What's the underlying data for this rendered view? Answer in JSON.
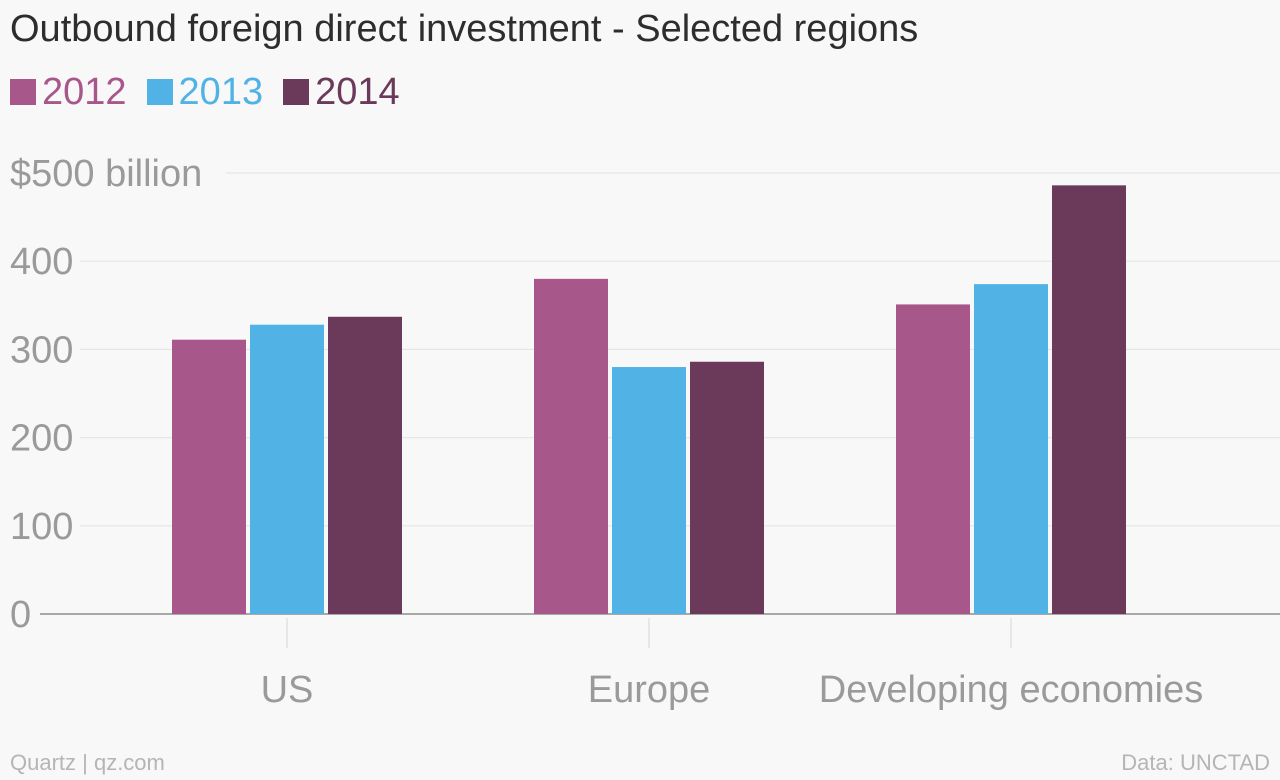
{
  "title": "Outbound foreign direct investment - Selected regions",
  "colors": {
    "2012": "#a8578a",
    "2013": "#51b2e5",
    "2014": "#6b3a5a"
  },
  "chart_data": {
    "type": "bar",
    "title": "Outbound foreign direct investment - Selected regions",
    "categories": [
      "US",
      "Europe",
      "Developing economies"
    ],
    "series": [
      {
        "name": "2012",
        "color": "#a8578a",
        "values": [
          311,
          380,
          351
        ]
      },
      {
        "name": "2013",
        "color": "#51b2e5",
        "values": [
          328,
          280,
          374
        ]
      },
      {
        "name": "2014",
        "color": "#6b3a5a",
        "values": [
          337,
          286,
          486
        ]
      }
    ],
    "yticks": [
      "0",
      "100",
      "200",
      "300",
      "400",
      "$500 billion"
    ],
    "ytick_values": [
      0,
      100,
      200,
      300,
      400,
      500
    ],
    "ylim": [
      0,
      500
    ],
    "xlabel": "",
    "ylabel": "",
    "grid": true,
    "legend_position": "top-left"
  },
  "footer": {
    "source_left": "Quartz | qz.com",
    "source_right": "Data: UNCTAD"
  }
}
